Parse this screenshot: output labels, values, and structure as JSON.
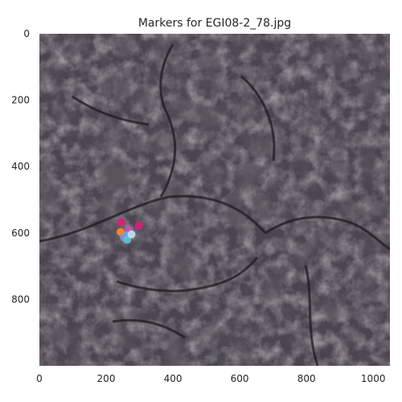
{
  "chart_data": {
    "type": "scatter",
    "title": "Markers for EGI08-2_78.jpg",
    "xlabel": "",
    "ylabel": "",
    "xlim": [
      0,
      1050
    ],
    "ylim": [
      1000,
      0
    ],
    "y_inverted": true,
    "x_ticks": [
      0,
      200,
      400,
      600,
      800,
      1000
    ],
    "y_ticks": [
      0,
      200,
      400,
      600,
      800
    ],
    "grid": false,
    "background": "aerial photograph of dark rocky terrain",
    "points": [
      {
        "x": 245,
        "y": 568,
        "color": "#e6197a"
      },
      {
        "x": 298,
        "y": 578,
        "color": "#e6197a"
      },
      {
        "x": 243,
        "y": 597,
        "color": "#ff8c1a"
      },
      {
        "x": 268,
        "y": 592,
        "color": "#d946b8"
      },
      {
        "x": 261,
        "y": 608,
        "color": "#5fb4e6"
      },
      {
        "x": 253,
        "y": 613,
        "color": "#8a8fd6"
      },
      {
        "x": 263,
        "y": 620,
        "color": "#58c4dd"
      },
      {
        "x": 276,
        "y": 604,
        "color": "#bfe3f0"
      }
    ]
  }
}
